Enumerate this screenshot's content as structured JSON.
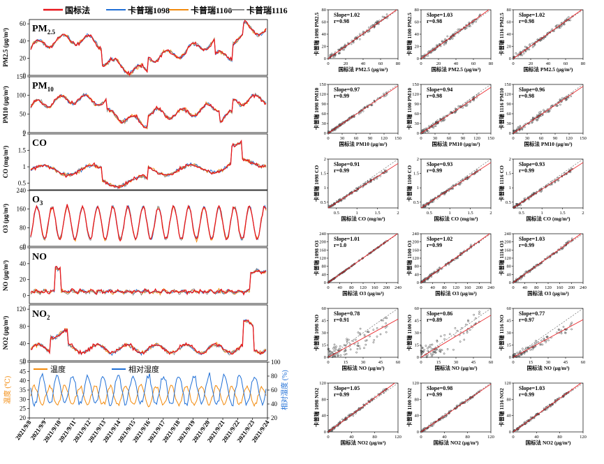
{
  "legend": {
    "items": [
      {
        "label": "国标法",
        "color": "#e8161b"
      },
      {
        "label": "卡普瑞1098",
        "color": "#1f6fd6"
      },
      {
        "label": "卡普瑞1100",
        "color": "#f28a0c"
      },
      {
        "label": "卡普瑞1116",
        "color": "#8c8c8c"
      }
    ]
  },
  "weather_legend": {
    "temp_label": "温度",
    "rh_label": "相对湿度",
    "temp_color": "#f28a0c",
    "rh_color": "#1f6fd6"
  },
  "time_series": {
    "x_dates": [
      "2021/9/8",
      "2021/9/9",
      "2021/9/10",
      "2021/9/11",
      "2021/9/12",
      "2021/9/13",
      "2021/9/14",
      "2021/9/15",
      "2021/9/16",
      "2021/9/17",
      "2021/9/18",
      "2021/9/19",
      "2021/9/20",
      "2021/9/21",
      "2021/9/22",
      "2021/9/23",
      "2021/9/24"
    ],
    "panels": [
      {
        "id": "pm25",
        "title": "PM",
        "title_sub": "2.5",
        "ylabel": "PM2.5 (μg/m³)",
        "yticks": [
          0,
          20,
          40,
          60
        ],
        "ylim": [
          0,
          65
        ]
      },
      {
        "id": "pm10",
        "title": "PM",
        "title_sub": "10",
        "ylabel": "PM10 (μg/m³)",
        "yticks": [
          0,
          50,
          100,
          150
        ],
        "ylim": [
          0,
          150
        ]
      },
      {
        "id": "co",
        "title": "CO",
        "title_sub": "",
        "ylabel": "CO (mg/m³)",
        "yticks": [
          0.5,
          1.0,
          1.5,
          2.0
        ],
        "ylim": [
          0.3,
          2.0
        ]
      },
      {
        "id": "o3",
        "title": "O",
        "title_sub": "3",
        "ylabel": "O3 (μg/m³)",
        "yticks": [
          0,
          80,
          160,
          240
        ],
        "ylim": [
          0,
          240
        ]
      },
      {
        "id": "no",
        "title": "NO",
        "title_sub": "",
        "ylabel": "NO (μg/m³)",
        "yticks": [
          0,
          20,
          40,
          60
        ],
        "ylim": [
          -10,
          60
        ]
      },
      {
        "id": "no2",
        "title": "NO",
        "title_sub": "2",
        "ylabel": "NO2 (μg/m³)",
        "yticks": [
          0,
          40,
          80,
          120
        ],
        "ylim": [
          0,
          130
        ]
      }
    ],
    "weather": {
      "left_ylabel": "温度 (℃)",
      "right_ylabel": "相对湿度 (%)",
      "left_ticks": [
        20,
        25,
        30,
        35,
        40,
        45,
        50
      ],
      "right_ticks": [
        20,
        40,
        60,
        80,
        100
      ],
      "left_lim": [
        20,
        50
      ],
      "right_lim": [
        20,
        100
      ]
    }
  },
  "chart_data": {
    "type": "scatter",
    "rows": [
      {
        "pollutant": "PM2.5",
        "xlabel": "国标法 PM2.5 (μg/m³)",
        "ticks": [
          0,
          20,
          40,
          60,
          80
        ],
        "lim": [
          0,
          80
        ],
        "cols": [
          {
            "ylabel": "卡普瑞 1098 PM2.5",
            "slope": "Slope=1.02",
            "r": "r=0.98"
          },
          {
            "ylabel": "卡普瑞 1100 PM2.5",
            "slope": "Slope=1.03",
            "r": "r=0.98"
          },
          {
            "ylabel": "卡普瑞 1116 PM2.5",
            "slope": "Slope=1.02",
            "r": "r=0.98"
          }
        ]
      },
      {
        "pollutant": "PM10",
        "xlabel": "国标法 PM10 (μg/m³)",
        "ticks": [
          0,
          30,
          60,
          90,
          120,
          150
        ],
        "lim": [
          0,
          150
        ],
        "cols": [
          {
            "ylabel": "卡普瑞 1098 PM10",
            "slope": "Slope=0.97",
            "r": "r=0.99"
          },
          {
            "ylabel": "卡普瑞 1100 PM10",
            "slope": "Slope=0.94",
            "r": "r=0.98"
          },
          {
            "ylabel": "卡普瑞 1116 PM10",
            "slope": "Slope=0.96",
            "r": "r=0.98"
          }
        ]
      },
      {
        "pollutant": "CO",
        "xlabel": "国标法 CO (mg/m³)",
        "ticks": [
          0.5,
          1.0,
          1.5,
          2.0
        ],
        "lim": [
          0.3,
          2.0
        ],
        "cols": [
          {
            "ylabel": "卡普瑞 1098 CO",
            "slope": "Slope=0.91",
            "r": "r=0.99"
          },
          {
            "ylabel": "卡普瑞 1100 CO",
            "slope": "Slope=0.93",
            "r": "r=0.99"
          },
          {
            "ylabel": "卡普瑞 1116 CO",
            "slope": "Slope=0.93",
            "r": "r=0.99"
          }
        ]
      },
      {
        "pollutant": "O3",
        "xlabel": "国标法 O3 (μg/m³)",
        "ticks": [
          0,
          40,
          80,
          120,
          160,
          200,
          240
        ],
        "lim": [
          0,
          240
        ],
        "cols": [
          {
            "ylabel": "卡普瑞 1098 O3",
            "slope": "Slope=1.01",
            "r": "r=1.0"
          },
          {
            "ylabel": "卡普瑞 1100 O3",
            "slope": "Slope=1.02",
            "r": "r=0.99"
          },
          {
            "ylabel": "卡普瑞 1116 O3",
            "slope": "Slope=1.03",
            "r": "r=0.99"
          }
        ]
      },
      {
        "pollutant": "NO",
        "xlabel": "国标法 NO (μg/m³)",
        "ticks": [
          0,
          15,
          30,
          45,
          60
        ],
        "lim": [
          0,
          60
        ],
        "cols": [
          {
            "ylabel": "卡普瑞 1098 NO",
            "slope": "Slope=0.78",
            "r": "r=0.91"
          },
          {
            "ylabel": "卡普瑞 1100 NO",
            "slope": "Slope=0.86",
            "r": "r=0.89"
          },
          {
            "ylabel": "卡普瑞 1116 NO",
            "slope": "Slope=0.77",
            "r": "r=0.97"
          }
        ]
      },
      {
        "pollutant": "NO2",
        "xlabel": "国标法 NO2 (μg/m³)",
        "ticks": [
          0,
          40,
          80,
          120
        ],
        "lim": [
          0,
          120
        ],
        "cols": [
          {
            "ylabel": "卡普瑞 1098 NO2",
            "slope": "Slope=1.05",
            "r": "r=0.99"
          },
          {
            "ylabel": "卡普瑞 1100 NO2",
            "slope": "Slope=0.98",
            "r": "r=0.99"
          },
          {
            "ylabel": "卡普瑞 1116 NO2",
            "slope": "Slope=1.03",
            "r": "r=0.99"
          }
        ]
      }
    ]
  }
}
